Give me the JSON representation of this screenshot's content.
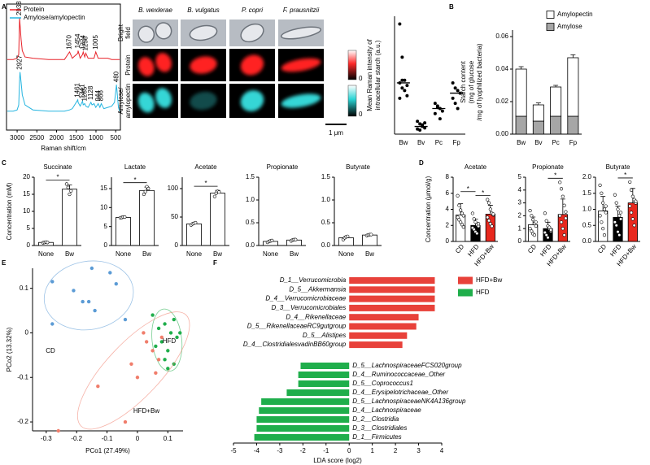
{
  "panel_labels": [
    "A",
    "B",
    "C",
    "D",
    "E",
    "F"
  ],
  "images": {
    "columns": [
      "B. wexlerae",
      "B. vulgatus",
      "P. copri",
      "F. prausnitzii"
    ],
    "rows": [
      [
        "Bright",
        "field"
      ],
      [
        "Protein"
      ],
      [
        "Amylose/",
        "amylopectin"
      ]
    ],
    "colorbar_label": "0",
    "scale_bar": "1 μm"
  },
  "chart_data": [
    {
      "type": "line",
      "xlabel": "Raman shift/cm",
      "x": [
        3250,
        3100,
        3000,
        2960,
        2938,
        2927,
        2900,
        2870,
        2800,
        2600,
        2200,
        1800,
        1670,
        1600,
        1461,
        1454,
        1400,
        1341,
        1324,
        1285,
        1258,
        1200,
        1128,
        1100,
        1049,
        1005,
        944,
        900,
        866,
        800,
        700,
        600,
        530,
        480,
        430,
        400
      ],
      "xlim": [
        3270,
        380
      ],
      "xticks": [
        3000,
        2500,
        2000,
        1500,
        1000,
        500
      ],
      "ylim": [
        0,
        100
      ],
      "series": [
        {
          "name": "Protein",
          "color": "#e8232a",
          "values": [
            56,
            56,
            57,
            60,
            89,
            84,
            72,
            63,
            58,
            57,
            56,
            56,
            62,
            57,
            61,
            63,
            57,
            60,
            62,
            58,
            61,
            57,
            57,
            57,
            57,
            62,
            57,
            57,
            57,
            57,
            57,
            56,
            56,
            56,
            56,
            56
          ],
          "peaks": [
            2938,
            1670,
            1454,
            1324,
            1258,
            1005
          ]
        },
        {
          "name": "Amylose/amylopectin",
          "color": "#26b5e0",
          "values": [
            15,
            15,
            16,
            20,
            40,
            46,
            38,
            28,
            20,
            16,
            15,
            15,
            16,
            17,
            24,
            22,
            19,
            23,
            20,
            21,
            19,
            18,
            22,
            20,
            21,
            18,
            21,
            18,
            21,
            17,
            18,
            19,
            22,
            36,
            18,
            15
          ],
          "peaks": [
            2927,
            1461,
            1341,
            1285,
            1128,
            944,
            866,
            480
          ]
        }
      ]
    },
    {
      "type": "dot",
      "ylabel_lines": [
        "Mean Raman intensity of",
        "intracellular starch (a.u.)"
      ],
      "categories": [
        "Bw",
        "Bv",
        "Pc",
        "Fp"
      ],
      "ylim": [
        0,
        230
      ],
      "points": [
        [
          215,
          150,
          105,
          95,
          100,
          90,
          85,
          75,
          70,
          105
        ],
        [
          25,
          20,
          15,
          12,
          10,
          8,
          18,
          22
        ],
        [
          60,
          55,
          50,
          45,
          40,
          52,
          30
        ],
        [
          100,
          90,
          85,
          80,
          70,
          60,
          50
        ]
      ],
      "values": [
        100,
        15,
        50,
        80
      ]
    },
    {
      "type": "stacked_bar",
      "ylabel_lines": [
        "Starch content",
        "(mg of glucose",
        "/mg of lyophilized bacteria)"
      ],
      "categories": [
        "Bw",
        "Bv",
        "Pc",
        "Fp"
      ],
      "ylim": [
        0,
        0.064
      ],
      "yticks": [
        {
          "value": 0,
          "label": "0.00"
        },
        {
          "value": 0.02,
          "label": "0.02"
        },
        {
          "value": 0.04,
          "label": "0.04"
        },
        {
          "value": 0.06,
          "label": "0.06"
        }
      ],
      "series": [
        {
          "name": "Amylose",
          "color": "#a6a6a6",
          "values": [
            0.011,
            0.008,
            0.011,
            0.011
          ],
          "errors": [
            0.0006,
            0.0005,
            0.0006,
            0.0008
          ]
        },
        {
          "name": "Amylopectin",
          "color": "#ffffff",
          "values": [
            0.029,
            0.01,
            0.018,
            0.036
          ],
          "errors": [
            0.0015,
            0.0012,
            0.001,
            0.0018
          ]
        }
      ]
    },
    {
      "type": "bar",
      "title": "Succinate",
      "ylabel": "Concentration (mM)",
      "categories": [
        "None",
        "Bw"
      ],
      "color": "#ffffff",
      "ylim": [
        0,
        20
      ],
      "yticks": [
        0,
        5,
        10,
        15,
        20
      ],
      "values": [
        0.9,
        16.5
      ],
      "errors": [
        0.1,
        1.2
      ],
      "points": [
        [
          0.8,
          0.9,
          1.0,
          0.9
        ],
        [
          18,
          17,
          15,
          16
        ]
      ],
      "significance": [
        {
          "text": "*",
          "from": 0,
          "to": 1
        }
      ]
    },
    {
      "type": "bar",
      "title": "Lactate",
      "categories": [
        "None",
        "Bw"
      ],
      "color": "#ffffff",
      "ylim": [
        0,
        18
      ],
      "yticks": [
        0,
        5,
        10,
        15
      ],
      "values": [
        7.4,
        14.5
      ],
      "errors": [
        0.1,
        0.9
      ],
      "points": [
        [
          7.3,
          7.4,
          7.5,
          7.5
        ],
        [
          13.5,
          14.2,
          15.5,
          15.0
        ]
      ],
      "significance": [
        {
          "text": "*",
          "from": 0,
          "to": 1
        }
      ]
    },
    {
      "type": "bar",
      "title": "Acetate",
      "categories": [
        "None",
        "Bw"
      ],
      "color": "#ffffff",
      "ylim": [
        0,
        120
      ],
      "yticks": [
        0,
        50,
        100
      ],
      "values": [
        38,
        92
      ],
      "errors": [
        2,
        5
      ],
      "points": [
        [
          36,
          38,
          39,
          40
        ],
        [
          86,
          92,
          95,
          94
        ]
      ],
      "significance": [
        {
          "text": "*",
          "from": 0,
          "to": 1
        }
      ]
    },
    {
      "type": "bar",
      "title": "Propionate",
      "categories": [
        "None",
        "Bw"
      ],
      "color": "#ffffff",
      "ylim": [
        0,
        1.5
      ],
      "yticks": [
        {
          "value": 0,
          "label": "0.0"
        },
        0.5,
        {
          "value": 1,
          "label": "1.0"
        },
        1.5
      ],
      "values": [
        0.09,
        0.12
      ],
      "errors": [
        0.02,
        0.02
      ],
      "points": [
        [
          0.07,
          0.09,
          0.1,
          0.11
        ],
        [
          0.1,
          0.12,
          0.13,
          0.13
        ]
      ]
    },
    {
      "type": "bar",
      "title": "Butyrate",
      "categories": [
        "None",
        "Bw"
      ],
      "color": "#ffffff",
      "ylim": [
        0,
        1.5
      ],
      "yticks": [
        {
          "value": 0,
          "label": "0.0"
        },
        0.5,
        {
          "value": 1,
          "label": "1.0"
        },
        1.5
      ],
      "values": [
        0.17,
        0.23
      ],
      "errors": [
        0.03,
        0.01
      ],
      "points": [
        [
          0.13,
          0.17,
          0.19,
          0.2
        ],
        [
          0.22,
          0.23,
          0.24,
          0.24
        ]
      ]
    },
    {
      "type": "bar",
      "title": "Acetate",
      "ylabel": "Concentration (μmol/g)",
      "categories": [
        "CD",
        "HFD",
        "HFD+Bw"
      ],
      "colors": [
        "#ffffff",
        "#000000",
        "#e8281e"
      ],
      "ylim": [
        0,
        8
      ],
      "yticks": [
        0,
        2,
        4,
        6,
        8
      ],
      "values": [
        3.3,
        2.0,
        3.4
      ],
      "errors": [
        1.4,
        0.8,
        1.1
      ],
      "points": [
        [
          5.7,
          4.5,
          3.9,
          3.5,
          3.2,
          3.0,
          2.7,
          2.4,
          2.1,
          1.8
        ],
        [
          3.5,
          2.8,
          2.4,
          2.1,
          1.9,
          1.7,
          1.5,
          1.2,
          1.0,
          2.2
        ],
        [
          5.2,
          4.8,
          4.0,
          3.5,
          3.3,
          3.0,
          2.6,
          2.2,
          1.9,
          3.4
        ]
      ],
      "significance": [
        {
          "text": "*",
          "from": 0,
          "to": 1
        },
        {
          "text": "*",
          "from": 1,
          "to": 2
        }
      ]
    },
    {
      "type": "bar",
      "title": "Propionate",
      "categories": [
        "CD",
        "HFD",
        "HFD+Bw"
      ],
      "colors": [
        "#ffffff",
        "#000000",
        "#e8281e"
      ],
      "ylim": [
        0,
        5
      ],
      "yticks": [
        0,
        1,
        2,
        3,
        4,
        5
      ],
      "values": [
        1.3,
        1.0,
        2.1
      ],
      "errors": [
        0.6,
        0.5,
        1.2
      ],
      "points": [
        [
          2.4,
          2.0,
          1.7,
          1.4,
          1.2,
          1.0,
          0.8,
          0.6,
          0.5,
          1.5
        ],
        [
          2.2,
          1.6,
          1.2,
          1.0,
          0.8,
          0.7,
          0.5,
          0.3,
          1.1,
          0.9
        ],
        [
          4.6,
          4.1,
          3.5,
          2.8,
          2.3,
          2.0,
          1.5,
          1.0,
          0.5,
          1.8
        ]
      ],
      "significance": [
        {
          "text": "*",
          "from": 1,
          "to": 2
        }
      ]
    },
    {
      "type": "bar",
      "title": "Butyrate",
      "categories": [
        "CD",
        "HFD",
        "HFD+Bw"
      ],
      "colors": [
        "#ffffff",
        "#000000",
        "#e8281e"
      ],
      "ylim": [
        0,
        2
      ],
      "yticks": [
        {
          "value": 0,
          "label": "0.0"
        },
        0.5,
        {
          "value": 1,
          "label": "1.0"
        },
        1.5,
        {
          "value": 2,
          "label": "2.0"
        }
      ],
      "values": [
        0.95,
        0.75,
        1.2
      ],
      "errors": [
        0.45,
        0.35,
        0.45
      ],
      "points": [
        [
          1.75,
          1.5,
          1.2,
          1.0,
          0.9,
          0.8,
          0.6,
          0.4,
          0.2,
          1.1
        ],
        [
          1.45,
          1.2,
          1.0,
          0.8,
          0.7,
          0.6,
          0.5,
          0.3,
          0.2,
          0.9
        ],
        [
          1.85,
          1.6,
          1.4,
          1.3,
          1.2,
          1.1,
          0.9,
          0.7,
          0.5,
          1.25
        ]
      ],
      "significance": [
        {
          "text": "*",
          "from": 1,
          "to": 2
        }
      ]
    },
    {
      "type": "scatter",
      "xlabel": "PCo1 (27.49%)",
      "ylabel": "PCo2 (13.32%)",
      "xlim": [
        -0.345,
        0.15
      ],
      "ylim": [
        -0.22,
        0.145
      ],
      "xticks": [
        -0.3,
        -0.2,
        -0.1,
        0,
        0.1
      ],
      "yticks": [
        -0.2,
        -0.1,
        0,
        0.1
      ],
      "series": [
        {
          "name": "CD",
          "color": "#5b9bd5",
          "x": [
            -0.28,
            -0.21,
            -0.18,
            -0.16,
            -0.15,
            -0.09,
            -0.07,
            -0.04,
            -0.28,
            -0.14
          ],
          "y": [
            0.115,
            0.095,
            0.07,
            0.07,
            0.145,
            0.135,
            0.11,
            0.03,
            0.02,
            0.05
          ]
        },
        {
          "name": "HFD",
          "color": "#1fae4b",
          "x": [
            0.05,
            0.07,
            0.08,
            0.09,
            0.1,
            0.11,
            0.12,
            0.13,
            0.09,
            0.1,
            0.12,
            0.14,
            0.06
          ],
          "y": [
            0.04,
            0.01,
            -0.02,
            0.02,
            -0.04,
            0.0,
            0.03,
            -0.01,
            -0.06,
            -0.08,
            -0.07,
            0.0,
            -0.03
          ]
        },
        {
          "name": "HFD+Bw",
          "color": "#f07d6b",
          "x": [
            0.03,
            0.05,
            0.07,
            0.08,
            0.02,
            -0.02,
            -0.13,
            -0.26,
            -0.04,
            0.06,
            0.0
          ],
          "y": [
            -0.02,
            -0.04,
            -0.06,
            -0.01,
            0.0,
            -0.07,
            -0.12,
            -0.22,
            -0.2,
            -0.09,
            -0.1
          ]
        }
      ]
    },
    {
      "type": "hbar",
      "xlabel": "LDA score (log2)",
      "xlim": [
        -5,
        4
      ],
      "xticks": [
        -5,
        -4,
        -3,
        -2,
        -1,
        0,
        1,
        2,
        3,
        4
      ],
      "series": [
        {
          "name": "HFD+Bw",
          "color": "#e8413a",
          "categories": [
            "D_1__Verrucomicrobia",
            "D_5__Akkermansia",
            "D_4__Verrucomicrobiaceae",
            "D_3__Verrucomicrobiales",
            "D_4__Rikenellaceae",
            "D_5__RikenellaceaeRC9gutgroup",
            "D_5__Alistipes",
            "D_4__ClostridialesvadinBB60group"
          ],
          "values": [
            3.7,
            3.7,
            3.7,
            3.7,
            3.0,
            2.9,
            2.5,
            2.3
          ]
        },
        {
          "name": "HFD",
          "color": "#1fae4b",
          "categories": [
            "D_5__LachnospiraceaeFCS020group",
            "D_4__Ruminococcaceae_Other",
            "D_5__Coprococcus1",
            "D_4__Erysipelotrichaceae_Other",
            "D_5__LachnospiraceaeNK4A136group",
            "D_4__Lachnospiraceae",
            "D_2__Clostridia",
            "D_3__Clostridiales",
            "D_1__Firmicutes"
          ],
          "values": [
            -2.1,
            -2.2,
            -2.2,
            -2.7,
            -3.8,
            -3.9,
            -4.0,
            -4.0,
            -4.1
          ]
        }
      ]
    }
  ]
}
